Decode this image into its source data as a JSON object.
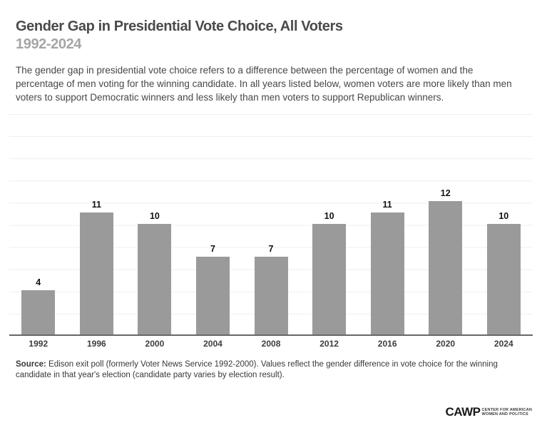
{
  "header": {
    "title": "Gender Gap in Presidential Vote Choice, All Voters",
    "subtitle": "1992-2024",
    "description": "The gender gap in presidential vote choice refers to a difference between the percentage of women and the percentage of men voting for the winning candidate. In all years listed below, women voters are more likely than men voters to support Democratic winners and less likely than men voters to support Republican winners."
  },
  "chart_data": {
    "type": "bar",
    "categories": [
      "1992",
      "1996",
      "2000",
      "2004",
      "2008",
      "2012",
      "2016",
      "2020",
      "2024"
    ],
    "values": [
      4,
      11,
      10,
      7,
      7,
      10,
      11,
      12,
      10
    ],
    "title": "Gender Gap in Presidential Vote Choice, All Voters 1992-2024",
    "xlabel": "",
    "ylabel": "",
    "ylim": [
      0,
      20
    ],
    "gridline_step": 2,
    "grid": true,
    "legend": false,
    "value_labels_shown": true,
    "bar_color": "#9a9a9a"
  },
  "footer": {
    "source_label": "Source:",
    "source_text": " Edison exit poll (formerly Voter News Service 1992-2000). Values reflect the gender difference in vote choice for the winning candidate in that year's election (candidate party varies by election result).",
    "logo": {
      "acronym": "CAWP",
      "line1": "CENTER FOR AMERICAN",
      "line2": "WOMEN AND POLITICS"
    }
  },
  "colors": {
    "title_text": "#4a4a4a",
    "subtitle_text": "#a5a5a5",
    "body_text": "#474747",
    "bar": "#9a9a9a",
    "gridline": "#eeeeee",
    "axis_line": "#686868"
  }
}
